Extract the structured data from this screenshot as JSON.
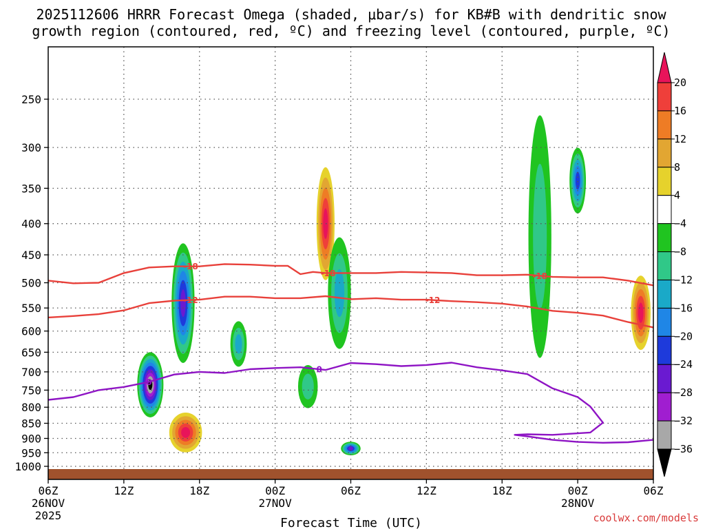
{
  "chart_data": {
    "type": "heatmap",
    "title_line1": "2025112606 HRRR Forecast Omega (shaded, μbar/s) for KB#B with dendritic snow",
    "title_line2": "growth region (contoured, red, ºC) and freezing level (contoured, purple, ºC)",
    "xlabel": "Forecast Time (UTC)",
    "ylabel": "",
    "x_ticks": [
      {
        "hour": 0,
        "line1": "06Z",
        "line2": "26NOV",
        "line3": "2025"
      },
      {
        "hour": 6,
        "line1": "12Z",
        "line2": "",
        "line3": ""
      },
      {
        "hour": 12,
        "line1": "18Z",
        "line2": "",
        "line3": ""
      },
      {
        "hour": 18,
        "line1": "00Z",
        "line2": "27NOV",
        "line3": ""
      },
      {
        "hour": 24,
        "line1": "06Z",
        "line2": "",
        "line3": ""
      },
      {
        "hour": 30,
        "line1": "12Z",
        "line2": "",
        "line3": ""
      },
      {
        "hour": 36,
        "line1": "18Z",
        "line2": "",
        "line3": ""
      },
      {
        "hour": 42,
        "line1": "00Z",
        "line2": "28NOV",
        "line3": ""
      },
      {
        "hour": 48,
        "line1": "06Z",
        "line2": "",
        "line3": ""
      }
    ],
    "xlim": [
      0,
      48
    ],
    "y_ticks": [
      250,
      300,
      350,
      400,
      450,
      500,
      550,
      600,
      650,
      700,
      750,
      800,
      850,
      900,
      950,
      1000
    ],
    "ylim": [
      200,
      1020
    ],
    "colorbar": {
      "ticks": [
        "20",
        "16",
        "12",
        "8",
        "4",
        "−4",
        "−8",
        "−12",
        "−16",
        "−20",
        "−24",
        "−28",
        "−32",
        "−36"
      ],
      "colors": [
        "#e8145a",
        "#ef3f3a",
        "#ee7c25",
        "#e2a632",
        "#e6d22c",
        "#ffffff",
        "#20c420",
        "#30c888",
        "#1aa9c8",
        "#1f86e6",
        "#1e3adb",
        "#6a1ad1",
        "#a01ed0",
        "#a8a8a8",
        "#000000"
      ],
      "top_color": "#e8145a",
      "bottom_color": "#000000"
    },
    "contours": [
      {
        "name": "-18C",
        "color": "#e8403a",
        "label": "-18",
        "points": [
          [
            0,
            496
          ],
          [
            2,
            501
          ],
          [
            4,
            500
          ],
          [
            6,
            482
          ],
          [
            8,
            472
          ],
          [
            10,
            470
          ],
          [
            12,
            470
          ],
          [
            14,
            466
          ],
          [
            16,
            467
          ],
          [
            18,
            469
          ],
          [
            19,
            469
          ],
          [
            20,
            484
          ],
          [
            21,
            480
          ],
          [
            22,
            482
          ],
          [
            24,
            482
          ],
          [
            26,
            482
          ],
          [
            28,
            480
          ],
          [
            30,
            481
          ],
          [
            32,
            482
          ],
          [
            34,
            486
          ],
          [
            36,
            486
          ],
          [
            38,
            485
          ],
          [
            40,
            489
          ],
          [
            42,
            490
          ],
          [
            44,
            490
          ],
          [
            46,
            496
          ],
          [
            48,
            505
          ]
        ],
        "label_hours": [
          11.3,
          22.2,
          39.0
        ]
      },
      {
        "name": "-12C",
        "color": "#e8403a",
        "label": "-12",
        "points": [
          [
            0,
            570
          ],
          [
            2,
            567
          ],
          [
            4,
            563
          ],
          [
            6,
            555
          ],
          [
            8,
            540
          ],
          [
            10,
            535
          ],
          [
            12,
            533
          ],
          [
            14,
            527
          ],
          [
            16,
            527
          ],
          [
            18,
            530
          ],
          [
            20,
            530
          ],
          [
            22,
            526
          ],
          [
            24,
            532
          ],
          [
            26,
            530
          ],
          [
            28,
            533
          ],
          [
            30,
            533
          ],
          [
            32,
            536
          ],
          [
            34,
            538
          ],
          [
            36,
            541
          ],
          [
            38,
            547
          ],
          [
            40,
            556
          ],
          [
            42,
            560
          ],
          [
            44,
            566
          ],
          [
            46,
            580
          ],
          [
            48,
            592
          ]
        ],
        "label_hours": [
          11.3,
          30.5
        ]
      },
      {
        "name": "0C",
        "color": "#8e14c4",
        "label": "0",
        "points": [
          [
            0,
            778
          ],
          [
            2,
            770
          ],
          [
            4,
            750
          ],
          [
            6,
            741
          ],
          [
            8,
            727
          ],
          [
            10,
            707
          ],
          [
            12,
            700
          ],
          [
            14,
            703
          ],
          [
            16,
            693
          ],
          [
            18,
            690
          ],
          [
            20,
            688
          ],
          [
            22,
            695
          ],
          [
            24,
            677
          ],
          [
            26,
            680
          ],
          [
            28,
            685
          ],
          [
            30,
            682
          ],
          [
            32,
            676
          ],
          [
            34,
            688
          ],
          [
            36,
            696
          ],
          [
            38,
            706
          ],
          [
            40,
            745
          ],
          [
            42,
            770
          ],
          [
            43,
            798
          ],
          [
            44,
            848
          ],
          [
            43,
            880
          ],
          [
            40,
            888
          ],
          [
            38,
            886
          ],
          [
            37,
            888
          ],
          [
            38,
            893
          ],
          [
            40,
            905
          ],
          [
            42,
            912
          ],
          [
            44,
            915
          ],
          [
            46,
            913
          ],
          [
            48,
            905
          ]
        ],
        "label_hours": [
          8.0,
          21.5
        ]
      }
    ],
    "omega_features": [
      {
        "hour": 8.1,
        "pres": 735,
        "rx": 0.8,
        "ry": 150,
        "value": -36,
        "note": "strongest upward motion"
      },
      {
        "hour": 10.7,
        "pres": 540,
        "rx": 0.7,
        "ry": 200,
        "value": -24
      },
      {
        "hour": 10.9,
        "pres": 880,
        "rx": 1.0,
        "ry": 110,
        "value": 20
      },
      {
        "hour": 15.1,
        "pres": 630,
        "rx": 0.5,
        "ry": 90,
        "value": -12
      },
      {
        "hour": 20.6,
        "pres": 740,
        "rx": 0.6,
        "ry": 100,
        "value": -8
      },
      {
        "hour": 22.0,
        "pres": 400,
        "rx": 0.55,
        "ry": 140,
        "value": 20
      },
      {
        "hour": 23.1,
        "pres": 520,
        "rx": 0.7,
        "ry": 180,
        "value": -12
      },
      {
        "hour": 24.0,
        "pres": 935,
        "rx": 0.6,
        "ry": 40,
        "value": -24
      },
      {
        "hour": 42.0,
        "pres": 340,
        "rx": 0.5,
        "ry": 70,
        "value": -20
      },
      {
        "hour": 47.0,
        "pres": 560,
        "rx": 0.6,
        "ry": 130,
        "value": 20
      },
      {
        "hour": 39.0,
        "pres": 420,
        "rx": 0.7,
        "ry": 300,
        "value": -8
      }
    ]
  },
  "credit": "coolwx.com/models"
}
